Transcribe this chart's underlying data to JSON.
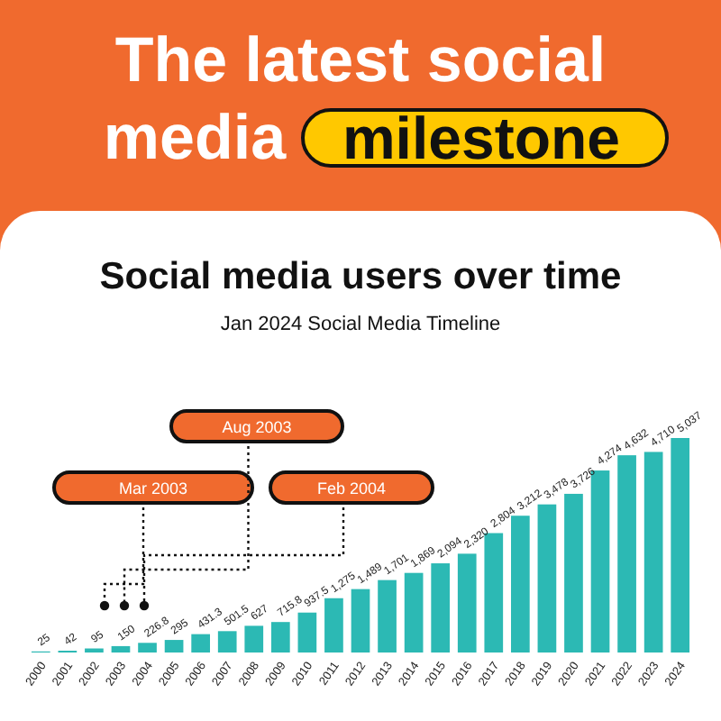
{
  "chart_data": {
    "type": "bar",
    "title": "The latest social media milestone",
    "subtitle": "Social media users over time",
    "categories": [
      "2000",
      "2001",
      "2002",
      "2003",
      "2004",
      "2005",
      "2006",
      "2007",
      "2008",
      "2009",
      "2010",
      "2011",
      "2012",
      "2013",
      "2014",
      "2015",
      "2016",
      "2017",
      "2018",
      "2019",
      "2020",
      "2021",
      "2022",
      "2023",
      "2024"
    ],
    "values": [
      25,
      42,
      95,
      150,
      226.8,
      295,
      431.3,
      501.5,
      627,
      715.8,
      937.5,
      1275,
      1489,
      1701,
      1869,
      2094,
      2320,
      2804,
      3212,
      3478,
      3726,
      4274,
      4632,
      4710,
      5037
    ],
    "value_labels": [
      "25",
      "42",
      "95",
      "150",
      "226.8",
      "295",
      "431.3",
      "501.5",
      "627",
      "715.8",
      "937.5",
      "1,275",
      "1,489",
      "1,701",
      "1,869",
      "2,094",
      "2,320",
      "2,804",
      "3,212",
      "3,478",
      "3,726",
      "4,274",
      "4,632",
      "4,710",
      "5,037"
    ],
    "color": "#2cb9b4",
    "annotations": [
      "Jan 2024 Social Media Timeline",
      "Mar 2003",
      "Aug 2003",
      "Feb 2004"
    ]
  }
}
